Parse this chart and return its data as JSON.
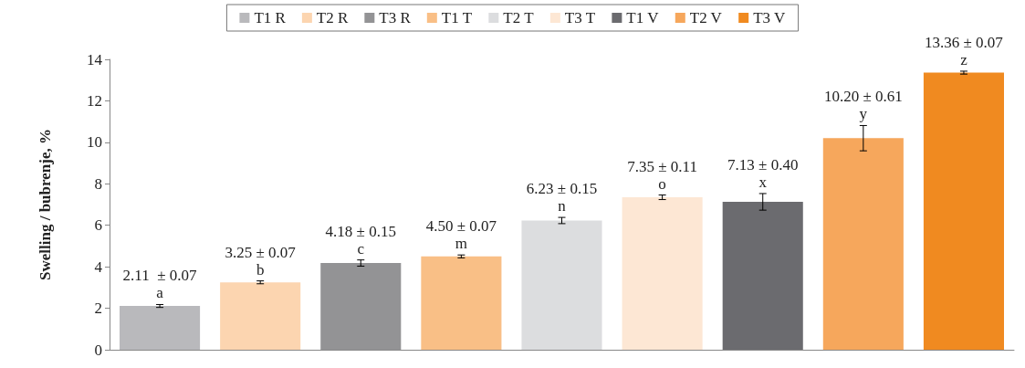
{
  "chart_data": {
    "type": "bar",
    "ylabel": "Swelling / bubrenje, %",
    "categories": [
      null,
      null,
      null,
      null,
      null,
      null,
      null,
      null,
      null
    ],
    "series": [
      {
        "name": "T1 R",
        "color": "#b9b9bc",
        "values": [
          2.11,
          null,
          null,
          null,
          null,
          null,
          null,
          null,
          null
        ],
        "errors": [
          0.07,
          null,
          null,
          null,
          null,
          null,
          null,
          null,
          null
        ],
        "value_labels": [
          "2.11  ± 0.07\na",
          null,
          null,
          null,
          null,
          null,
          null,
          null,
          null
        ]
      },
      {
        "name": "T2 R",
        "color": "#fcd5b0",
        "values": [
          null,
          3.25,
          null,
          null,
          null,
          null,
          null,
          null,
          null
        ],
        "errors": [
          null,
          0.07,
          null,
          null,
          null,
          null,
          null,
          null,
          null
        ],
        "value_labels": [
          null,
          "3.25 ± 0.07\nb",
          null,
          null,
          null,
          null,
          null,
          null,
          null
        ]
      },
      {
        "name": "T3 R",
        "color": "#939395",
        "values": [
          null,
          null,
          4.18,
          null,
          null,
          null,
          null,
          null,
          null
        ],
        "errors": [
          null,
          null,
          0.15,
          null,
          null,
          null,
          null,
          null,
          null
        ],
        "value_labels": [
          null,
          null,
          "4.18 ± 0.15\nc",
          null,
          null,
          null,
          null,
          null,
          null
        ]
      },
      {
        "name": "T1 T",
        "color": "#f9bf86",
        "values": [
          null,
          null,
          null,
          4.5,
          null,
          null,
          null,
          null,
          null
        ],
        "errors": [
          null,
          null,
          null,
          0.07,
          null,
          null,
          null,
          null,
          null
        ],
        "value_labels": [
          null,
          null,
          null,
          "4.50 ± 0.07\nm",
          null,
          null,
          null,
          null,
          null
        ]
      },
      {
        "name": "T2 T",
        "color": "#dcdddf",
        "values": [
          null,
          null,
          null,
          null,
          6.23,
          null,
          null,
          null,
          null
        ],
        "errors": [
          null,
          null,
          null,
          null,
          0.15,
          null,
          null,
          null,
          null
        ],
        "value_labels": [
          null,
          null,
          null,
          null,
          "6.23 ± 0.15\nn",
          null,
          null,
          null,
          null
        ]
      },
      {
        "name": "T3 T",
        "color": "#fde7d4",
        "values": [
          null,
          null,
          null,
          null,
          null,
          7.35,
          null,
          null,
          null
        ],
        "errors": [
          null,
          null,
          null,
          null,
          null,
          0.11,
          null,
          null,
          null
        ],
        "value_labels": [
          null,
          null,
          null,
          null,
          null,
          "7.35 ± 0.11\no",
          null,
          null,
          null
        ]
      },
      {
        "name": "T1 V",
        "color": "#6b6b6f",
        "values": [
          null,
          null,
          null,
          null,
          null,
          null,
          7.13,
          null,
          null
        ],
        "errors": [
          null,
          null,
          null,
          null,
          null,
          null,
          0.4,
          null,
          null
        ],
        "value_labels": [
          null,
          null,
          null,
          null,
          null,
          null,
          "7.13 ± 0.40\nx",
          null,
          null
        ]
      },
      {
        "name": "T2 V",
        "color": "#f6a75c",
        "values": [
          null,
          null,
          null,
          null,
          null,
          null,
          null,
          10.2,
          null
        ],
        "errors": [
          null,
          null,
          null,
          null,
          null,
          null,
          null,
          0.61,
          null
        ],
        "value_labels": [
          null,
          null,
          null,
          null,
          null,
          null,
          null,
          "10.20 ± 0.61\ny",
          null
        ]
      },
      {
        "name": "T3 V",
        "color": "#f08a20",
        "values": [
          null,
          null,
          null,
          null,
          null,
          null,
          null,
          null,
          13.36
        ],
        "errors": [
          null,
          null,
          null,
          null,
          null,
          null,
          null,
          null,
          0.07
        ],
        "value_labels": [
          null,
          null,
          null,
          null,
          null,
          null,
          null,
          null,
          "13.36 ± 0.07\nz"
        ]
      }
    ],
    "ylim": [
      0,
      14
    ],
    "yticks": [
      0,
      2,
      4,
      6,
      8,
      10,
      12,
      14
    ],
    "legend": "top"
  }
}
